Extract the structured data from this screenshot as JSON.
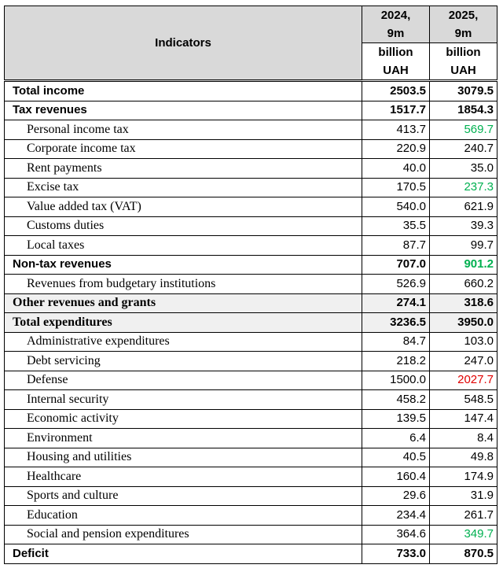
{
  "table": {
    "header": {
      "indicators": "Indicators",
      "columns": [
        {
          "period": "2024,\n9m",
          "unit": "billion\nUAH"
        },
        {
          "period": "2025,\n9m",
          "unit": "billion\nUAH"
        }
      ]
    },
    "rows": [
      [
        "Total income",
        "2503.5",
        "3079.5"
      ],
      [
        "Tax revenues",
        "1517.7",
        "1854.3"
      ],
      [
        "Personal income tax",
        "413.7",
        "569.7"
      ],
      [
        "Corporate income tax",
        "220.9",
        "240.7"
      ],
      [
        "Rent payments",
        "40.0",
        "35.0"
      ],
      [
        "Excise tax",
        "170.5",
        "237.3"
      ],
      [
        "Value added tax (VAT)",
        "540.0",
        "621.9"
      ],
      [
        "Customs duties",
        "35.5",
        "39.3"
      ],
      [
        "Local taxes",
        "87.7",
        "99.7"
      ],
      [
        "Non-tax revenues",
        "707.0",
        "901.2"
      ],
      [
        "Revenues from budgetary institutions",
        "526.9",
        "660.2"
      ],
      [
        "Other revenues and grants",
        "274.1",
        "318.6"
      ],
      [
        "Total expenditures",
        "3236.5",
        "3950.0"
      ],
      [
        "Administrative expenditures",
        "84.7",
        "103.0"
      ],
      [
        "Debt servicing",
        "218.2",
        "247.0"
      ],
      [
        "Defense",
        "1500.0",
        "2027.7"
      ],
      [
        "Internal security",
        "458.2",
        "548.5"
      ],
      [
        "Economic activity",
        "139.5",
        "147.4"
      ],
      [
        "Environment",
        "6.4",
        "8.4"
      ],
      [
        "Housing and utilities",
        "40.5",
        "49.8"
      ],
      [
        "Healthcare",
        "160.4",
        "174.9"
      ],
      [
        "Sports and culture",
        "29.6",
        "31.9"
      ],
      [
        "Education",
        "234.4",
        "261.7"
      ],
      [
        "Social and pension expenditures",
        "364.6",
        "349.7"
      ],
      [
        "Deficit",
        "733.0",
        "870.5"
      ]
    ]
  }
}
